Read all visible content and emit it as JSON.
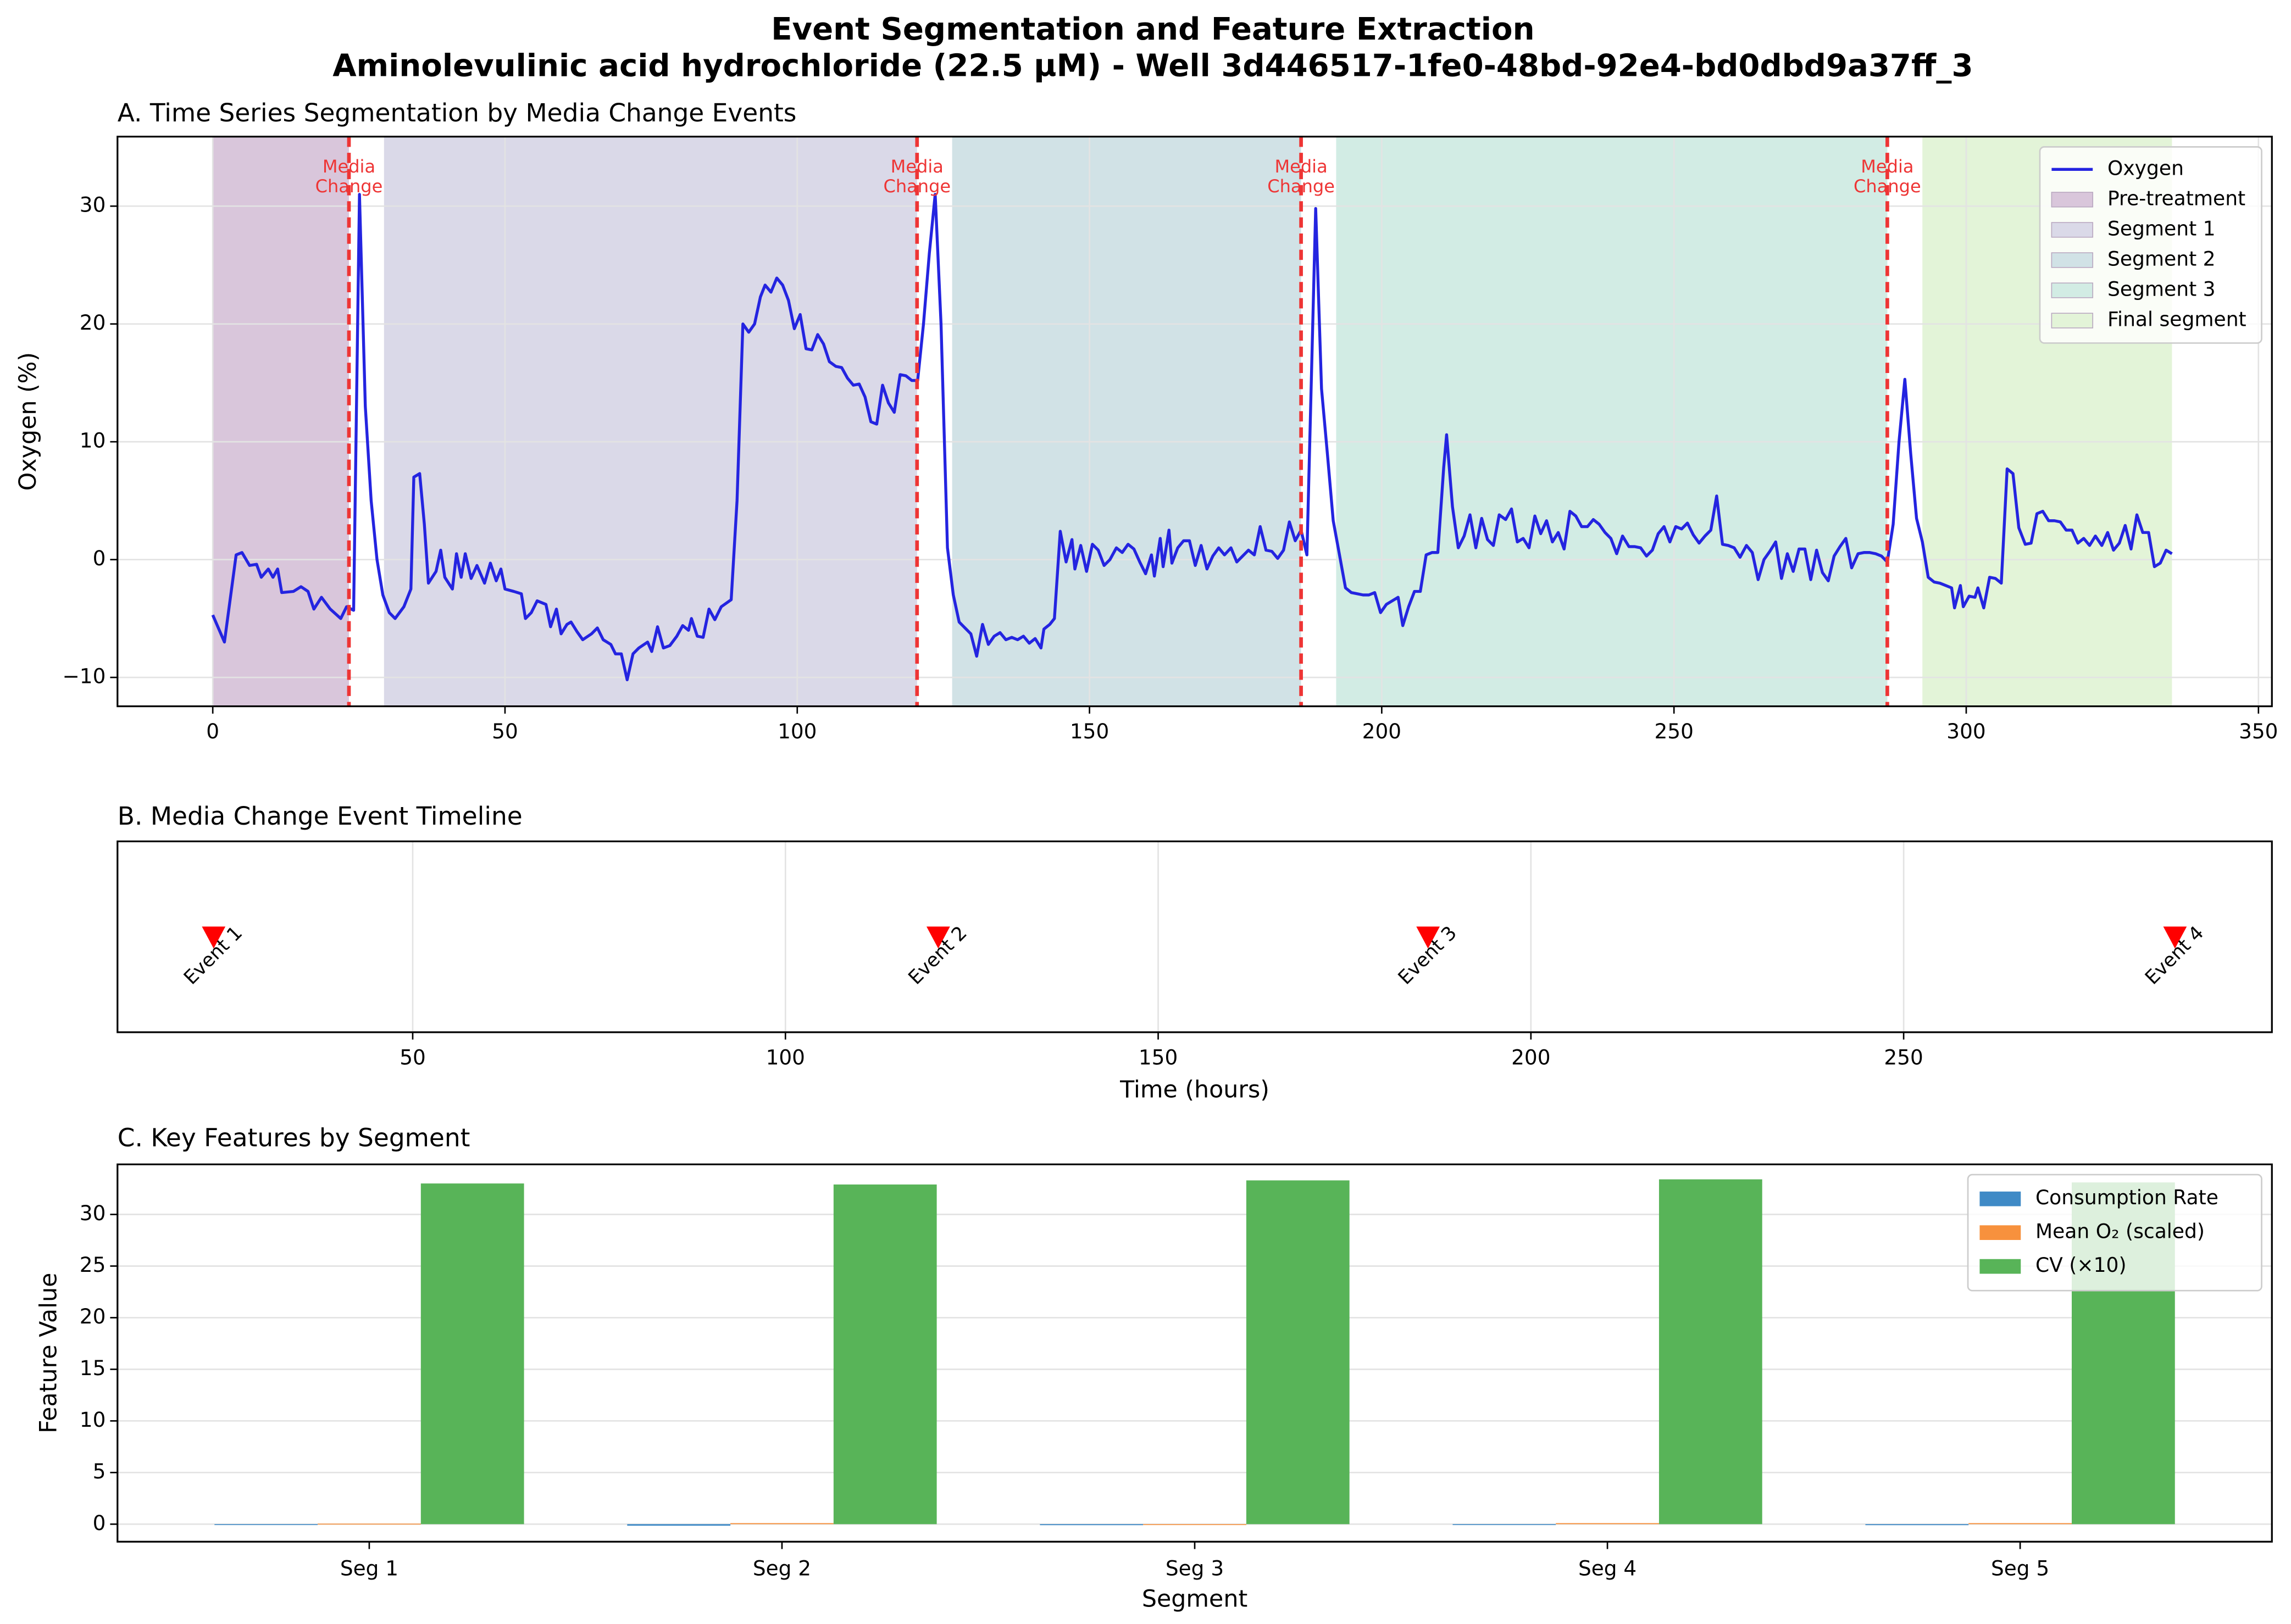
{
  "title": [
    "Event Segmentation and Feature Extraction",
    "Aminolevulinic acid hydrochloride (22.5 µM) - Well 3d446517-1fe0-48bd-92e4-bd0dbd9a37ff_3"
  ],
  "chart_data": [
    {
      "type": "line",
      "title": "A. Time Series Segmentation by Media Change Events",
      "ylabel": "Oxygen (%)",
      "x": [
        0,
        2.0,
        4.0,
        5.0,
        6.3,
        7.5,
        8.3,
        9.5,
        10.3,
        11.1,
        11.8,
        13.8,
        15.1,
        16.3,
        17.3,
        18.6,
        20.1,
        21.9,
        22.9,
        24.1,
        25.1,
        26.1,
        27.1,
        28.1,
        29.1,
        30.2,
        31.2,
        32.7,
        33.9,
        34.4,
        35.4,
        36.2,
        36.9,
        38.2,
        39.0,
        39.7,
        41.0,
        41.7,
        42.5,
        43.2,
        44.2,
        45.2,
        46.5,
        47.5,
        48.5,
        49.3,
        50.0,
        51.5,
        52.8,
        53.5,
        54.5,
        55.5,
        57.0,
        57.8,
        58.8,
        59.6,
        60.6,
        61.3,
        62.3,
        63.3,
        64.8,
        65.8,
        66.8,
        68.1,
        68.9,
        69.9,
        70.9,
        71.9,
        72.9,
        74.4,
        75.1,
        76.1,
        77.1,
        78.2,
        79.4,
        80.4,
        81.4,
        81.9,
        82.9,
        83.9,
        84.9,
        85.9,
        87.0,
        88.7,
        89.7,
        90.7,
        91.7,
        92.7,
        93.7,
        94.5,
        95.5,
        96.5,
        97.5,
        98.5,
        99.5,
        100.5,
        101.5,
        102.5,
        103.5,
        104.5,
        105.5,
        106.6,
        107.6,
        108.6,
        109.6,
        110.6,
        111.6,
        112.6,
        113.6,
        114.6,
        115.6,
        116.6,
        117.6,
        118.6,
        119.6,
        120.6,
        121.6,
        122.6,
        123.6,
        124.6,
        125.7,
        126.7,
        127.7,
        128.7,
        129.7,
        130.7,
        131.7,
        132.7,
        133.7,
        134.7,
        135.7,
        136.7,
        137.7,
        138.7,
        139.7,
        140.7,
        141.7,
        142.2,
        143.2,
        144.0,
        145.0,
        146.0,
        147.0,
        147.5,
        148.5,
        149.5,
        150.5,
        151.5,
        152.5,
        153.5,
        154.6,
        155.6,
        156.6,
        157.6,
        158.6,
        159.6,
        160.6,
        161.1,
        162.1,
        162.6,
        163.6,
        164.1,
        165.1,
        166.1,
        167.1,
        168.1,
        169.1,
        170.1,
        171.1,
        172.1,
        173.1,
        174.2,
        175.2,
        176.2,
        177.2,
        178.2,
        179.2,
        180.2,
        181.2,
        182.2,
        183.2,
        184.2,
        185.2,
        186.2,
        187.2,
        188.7,
        189.7,
        190.7,
        191.7,
        192.7,
        193.8,
        194.8,
        195.8,
        196.8,
        197.8,
        198.8,
        199.8,
        200.8,
        201.8,
        202.8,
        203.6,
        204.6,
        205.6,
        206.6,
        207.6,
        208.6,
        209.6,
        210.6,
        211.1,
        212.1,
        213.1,
        214.1,
        215.1,
        216.1,
        217.1,
        218.1,
        219.1,
        220.1,
        221.2,
        222.2,
        223.2,
        224.2,
        225.2,
        226.2,
        227.2,
        228.2,
        229.2,
        230.2,
        231.2,
        232.2,
        233.2,
        234.2,
        235.2,
        236.2,
        237.2,
        238.2,
        239.2,
        240.2,
        241.2,
        242.3,
        243.3,
        244.3,
        245.3,
        246.3,
        247.3,
        248.3,
        249.3,
        250.3,
        251.3,
        252.3,
        253.3,
        254.3,
        255.3,
        256.3,
        257.3,
        258.3,
        259.3,
        260.3,
        261.3,
        262.4,
        263.4,
        264.4,
        265.4,
        266.4,
        267.4,
        268.4,
        269.4,
        270.4,
        271.4,
        272.4,
        273.4,
        274.4,
        275.4,
        276.4,
        277.4,
        278.4,
        279.4,
        280.4,
        281.5,
        282.5,
        283.5,
        284.5,
        285.5,
        286.5,
        287.5,
        288.5,
        289.5,
        290.5,
        291.5,
        292.5,
        293.5,
        294.5,
        295.5,
        296.5,
        297.5,
        298.0,
        299.0,
        299.5,
        300.5,
        301.5,
        302.0,
        303.0,
        304.0,
        305.0,
        306.0,
        307.0,
        308.0,
        309.0,
        310.1,
        311.1,
        312.1,
        313.1,
        314.1,
        315.1,
        316.1,
        317.1,
        318.1,
        319.1,
        320.1,
        321.1,
        322.1,
        323.2,
        324.2,
        325.2,
        326.2,
        327.2,
        328.2,
        329.2,
        330.2,
        331.2,
        332.2,
        333.2,
        334.2,
        335.2
      ],
      "series": [
        {
          "name": "Oxygen",
          "color": "#2424e0",
          "values": [
            -4.7,
            -7.0,
            0.4,
            0.6,
            -0.5,
            -0.4,
            -1.5,
            -0.8,
            -1.5,
            -0.8,
            -2.8,
            -2.7,
            -2.3,
            -2.7,
            -4.2,
            -3.2,
            -4.2,
            -5.0,
            -4.0,
            -4.3,
            31,
            13,
            5,
            0,
            -3,
            -4.5,
            -5,
            -4,
            -2.5,
            7,
            7.3,
            3,
            -2,
            -1,
            0.8,
            -1.5,
            -2.5,
            0.5,
            -1.5,
            0.5,
            -1.6,
            -0.5,
            -2,
            -0.3,
            -1.8,
            -0.8,
            -2.5,
            -2.7,
            -2.9,
            -5,
            -4.5,
            -3.5,
            -3.8,
            -5.7,
            -4.2,
            -6.3,
            -5.5,
            -5.3,
            -6.1,
            -6.8,
            -6.3,
            -5.8,
            -6.8,
            -7.2,
            -8,
            -8,
            -10.2,
            -8,
            -7.5,
            -7,
            -7.8,
            -5.7,
            -7.5,
            -7.3,
            -6.5,
            -5.6,
            -6,
            -5,
            -6.5,
            -6.6,
            -4.2,
            -5.1,
            -4,
            -3.4,
            5,
            20,
            19.3,
            20,
            22.3,
            23.3,
            22.7,
            23.9,
            23.3,
            22,
            19.6,
            20.8,
            17.9,
            17.8,
            19.1,
            18.3,
            16.8,
            16.4,
            16.3,
            15.4,
            14.8,
            14.9,
            13.8,
            11.7,
            11.5,
            14.8,
            13.3,
            12.5,
            15.7,
            15.6,
            15.2,
            15.2,
            20,
            26,
            31,
            20,
            1,
            -3,
            -5.3,
            -5.8,
            -6.3,
            -8.2,
            -5.5,
            -7.2,
            -6.5,
            -6.2,
            -6.8,
            -6.6,
            -6.8,
            -6.5,
            -7.1,
            -6.7,
            -7.5,
            -5.9,
            -5.5,
            -5,
            2.4,
            -0.2,
            1.7,
            -0.8,
            1.2,
            -1,
            1.3,
            0.8,
            -0.5,
            0,
            1,
            0.6,
            1.3,
            0.9,
            -0.2,
            -1.2,
            0.4,
            -1.4,
            1.8,
            -0.6,
            2.5,
            -0.3,
            1,
            1.6,
            1.6,
            -0.5,
            1.2,
            -0.8,
            0.3,
            1,
            0.4,
            1,
            -0.2,
            0.3,
            0.8,
            0.4,
            2.8,
            0.8,
            0.7,
            0.1,
            0.8,
            3.2,
            1.6,
            2.5,
            0.4,
            29.8,
            14.5,
            9,
            3.3,
            0.6,
            -2.4,
            -2.8,
            -2.9,
            -3,
            -3,
            -2.8,
            -4.5,
            -3.8,
            -3.5,
            -3.2,
            -5.6,
            -4,
            -2.7,
            -2.7,
            0.4,
            0.6,
            0.6,
            7.8,
            10.6,
            4.5,
            1,
            2,
            3.8,
            1,
            3.5,
            1.7,
            1.2,
            3.8,
            3.4,
            4.3,
            1.5,
            1.8,
            1,
            3.7,
            2.2,
            3.3,
            1.5,
            2.3,
            0.9,
            4.1,
            3.7,
            2.8,
            2.8,
            3.4,
            3,
            2.3,
            1.8,
            0.5,
            2,
            1.1,
            1.1,
            1,
            0.3,
            0.8,
            2.2,
            2.8,
            1.5,
            2.8,
            2.6,
            3.1,
            2.1,
            1.4,
            2,
            2.5,
            5.4,
            1.3,
            1.2,
            1.0,
            0.2,
            1.2,
            0.6,
            -1.7,
            0,
            0.7,
            1.5,
            -1.6,
            0.5,
            -1,
            0.9,
            0.9,
            -1.7,
            0.8,
            -1.1,
            -1.8,
            0.3,
            1.1,
            1.8,
            -0.7,
            0.5,
            0.6,
            0.6,
            0.5,
            0.3,
            -0.2,
            3,
            10,
            15.3,
            9,
            3.5,
            1.5,
            -1.5,
            -1.9,
            -2,
            -2.2,
            -2.4,
            -4.1,
            -2.2,
            -4,
            -3.1,
            -3.2,
            -2.4,
            -4.1,
            -1.5,
            -1.6,
            -2,
            7.7,
            7.3,
            2.7,
            1.3,
            1.4,
            3.9,
            4.1,
            3.3,
            3.3,
            3.2,
            2.5,
            2.5,
            1.4,
            1.8,
            1.2,
            2,
            1.2,
            2.3,
            0.8,
            1.4,
            2.9,
            0.9,
            3.8,
            2.3,
            2.3,
            -0.6,
            -0.3,
            0.8,
            0.5
          ]
        }
      ],
      "spans": [
        {
          "name": "Pre-treatment",
          "color": "#d9c6db",
          "range": [
            0,
            23.3
          ]
        },
        {
          "name": "Segment 1",
          "color": "#dad9e8",
          "range": [
            29.3,
            120.5
          ]
        },
        {
          "name": "Segment 2",
          "color": "#d1e2e6",
          "range": [
            126.5,
            186.2
          ]
        },
        {
          "name": "Segment 3",
          "color": "#d2ece4",
          "range": [
            192.2,
            286.5
          ]
        },
        {
          "name": "Final segment",
          "color": "#e3f4d8",
          "range": [
            292.5,
            335.2
          ]
        }
      ],
      "events": [
        23.3,
        120.5,
        186.2,
        286.5
      ],
      "event_label": [
        "Media",
        "Change"
      ],
      "event_color": "#ee3535",
      "xlim": [
        -16.3,
        352.3
      ],
      "ylim": [
        -12.45,
        35.9
      ],
      "xticks": [
        0,
        50,
        100,
        150,
        200,
        250,
        300,
        350
      ],
      "yticks": [
        {
          "value": -10,
          "label": "−10"
        },
        0,
        10,
        20,
        30
      ],
      "grid": true,
      "legend": "upper right"
    },
    {
      "type": "scatter",
      "title": "B. Media Change Event Timeline",
      "xlabel": "Time (hours)",
      "x": [
        23.3,
        120.5,
        186.2,
        286.4
      ],
      "labels": [
        "Event 1",
        "Event 2",
        "Event 3",
        "Event 4"
      ],
      "color": "#ff0000",
      "xlim": [
        10.4,
        299.4
      ],
      "xticks": [
        50,
        100,
        150,
        200,
        250
      ],
      "grid": true
    },
    {
      "type": "bar",
      "title": "C. Key Features by Segment",
      "xlabel": "Segment",
      "ylabel": "Feature Value",
      "categories": [
        "Seg 1",
        "Seg 2",
        "Seg 3",
        "Seg 4",
        "Seg 5"
      ],
      "series": [
        {
          "name": "Consumption Rate",
          "color": "#3f8ac6",
          "values": [
            -0.05,
            -0.15,
            -0.1,
            0,
            -0.1
          ]
        },
        {
          "name": "Mean O₂ (scaled)",
          "color": "#f7913d",
          "values": [
            0.05,
            0.1,
            0,
            0.1,
            0.1
          ]
        },
        {
          "name": "CV (×10)",
          "color": "#58b458",
          "values": [
            33.0,
            32.9,
            33.3,
            33.4,
            33.1
          ]
        }
      ],
      "ylim": [
        -1.7,
        34.85
      ],
      "yticks": [
        0,
        5,
        10,
        15,
        20,
        25,
        30
      ],
      "grid": true,
      "legend": "upper right"
    }
  ]
}
